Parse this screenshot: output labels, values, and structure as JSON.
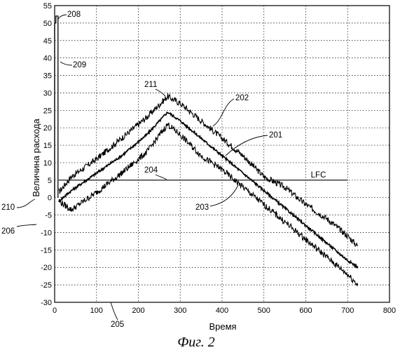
{
  "chart_data": {
    "type": "line",
    "xlabel": "Время",
    "ylabel": "Величина расхода",
    "xlim": [
      0,
      800
    ],
    "ylim": [
      -30,
      55
    ],
    "x_ticks": [
      0,
      100,
      200,
      300,
      400,
      500,
      600,
      700,
      800
    ],
    "y_ticks": [
      -30,
      -25,
      -20,
      -15,
      -10,
      -5,
      0,
      5,
      10,
      15,
      20,
      25,
      30,
      35,
      40,
      45,
      50,
      55
    ],
    "grid": true,
    "series": [
      {
        "id": "202",
        "x": [
          10,
          40,
          100,
          160,
          220,
          270,
          300,
          350,
          400,
          450,
          500,
          550,
          600,
          650,
          700,
          725
        ],
        "y": [
          1.5,
          6,
          11,
          17,
          23,
          29,
          27,
          22,
          17,
          12,
          6,
          3,
          -2,
          -6,
          -11,
          -14
        ]
      },
      {
        "id": "201",
        "x": [
          10,
          40,
          100,
          160,
          220,
          270,
          300,
          350,
          400,
          450,
          500,
          550,
          600,
          650,
          700,
          725
        ],
        "y": [
          -1,
          2,
          7,
          12,
          18,
          24.5,
          22,
          17,
          12,
          7,
          2,
          -3,
          -8,
          -13,
          -18,
          -20
        ]
      },
      {
        "id": "203",
        "x": [
          10,
          40,
          100,
          160,
          220,
          270,
          300,
          350,
          400,
          450,
          500,
          550,
          600,
          650,
          700,
          725
        ],
        "y": [
          -1,
          -3.5,
          1.5,
          7,
          13,
          21,
          18,
          12,
          8,
          3,
          -2,
          -7,
          -12,
          -17,
          -22,
          -25
        ]
      },
      {
        "id": "208-209",
        "x": [
          0,
          0,
          3,
          3,
          8,
          8
        ],
        "y": [
          0,
          50,
          50,
          52,
          52,
          0
        ]
      }
    ],
    "hline": {
      "y": 5,
      "label": "LFC"
    },
    "annotations": [
      "208",
      "209",
      "211",
      "202",
      "201",
      "204",
      "210",
      "206",
      "203",
      "205"
    ]
  },
  "caption": "Фиг. 2"
}
